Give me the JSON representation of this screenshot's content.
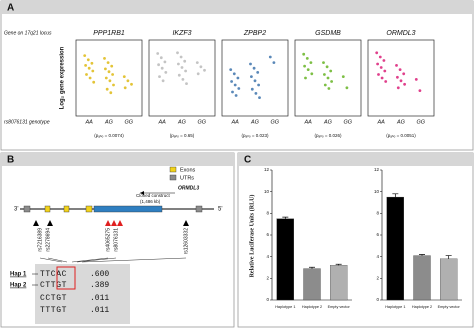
{
  "panel_a": {
    "label": "A",
    "gene_label": "Gene on 17q21 locus",
    "y_label": "Log₂ gene expression",
    "x_label": "rs8076131 genotype"
  },
  "panel_b": {
    "label": "B",
    "legend": [
      "Exons",
      "UTRs"
    ],
    "end_3": "3'",
    "end_5": "5'",
    "gene": "ORMDL3",
    "construct": [
      "Cloned construct",
      "(1,486 kb)"
    ],
    "snps": [
      "rs7216389",
      "rs2278694",
      "rs4065275",
      "rs8076131",
      "rs12603332"
    ],
    "hap_labels": [
      "Hap 1",
      "Hap 2"
    ],
    "haplotypes": [
      {
        "seq": "TTCAC",
        "freq": ".600"
      },
      {
        "seq": "CTTGT",
        "freq": ".389"
      },
      {
        "seq": "CCTGT",
        "freq": ".011"
      },
      {
        "seq": "TTTGT",
        "freq": ".011"
      }
    ]
  },
  "panel_c": {
    "label": "C",
    "y_label": "Relative Luciferase Units (RLU)"
  },
  "chart_data": [
    {
      "type": "strip",
      "title": "PPP1RB1",
      "color": "#e3c437",
      "categories": [
        "AA",
        "AG",
        "GG"
      ],
      "ylim": [
        0,
        10
      ],
      "values": [
        [
          8.2,
          7.6,
          7.1,
          6.8,
          6.4,
          6.0,
          5.5,
          5.0,
          4.4
        ],
        [
          7.8,
          7.2,
          6.7,
          6.3,
          5.9,
          5.5,
          5.0,
          4.6,
          4.0,
          3.4,
          2.9
        ],
        [
          5.2,
          4.6,
          4.1,
          3.6
        ]
      ],
      "p_label": "(pₐₙₒ = 0.0074)"
    },
    {
      "type": "strip",
      "title": "IKZF3",
      "color": "#c4c4c4",
      "categories": [
        "AA",
        "AG",
        "GG"
      ],
      "ylim": [
        0,
        10
      ],
      "values": [
        [
          8.5,
          7.9,
          7.3,
          6.9,
          6.4,
          5.8,
          5.2,
          4.6
        ],
        [
          8.6,
          8.0,
          7.4,
          7.0,
          6.5,
          6.0,
          5.4,
          4.8,
          4.2
        ],
        [
          7.2,
          6.6,
          6.1,
          5.6
        ]
      ],
      "p_label": "(pₐₙₒ = 0.65)"
    },
    {
      "type": "strip",
      "title": "ZPBP2",
      "color": "#5a88b8",
      "categories": [
        "AA",
        "AG",
        "GG"
      ],
      "ylim": [
        0,
        10
      ],
      "values": [
        [
          6.2,
          5.6,
          5.0,
          4.5,
          4.0,
          3.5,
          3.0,
          2.5
        ],
        [
          7.0,
          6.4,
          5.8,
          5.2,
          4.6,
          4.0,
          3.4,
          2.8,
          2.2
        ],
        [
          8.0,
          7.2
        ]
      ],
      "p_label": "(pₐₙₒ = 0.023)"
    },
    {
      "type": "strip",
      "title": "GSDMB",
      "color": "#7dbf45",
      "categories": [
        "AA",
        "AG",
        "GG"
      ],
      "ylim": [
        0,
        10
      ],
      "values": [
        [
          8.4,
          7.8,
          7.2,
          6.7,
          6.2,
          5.6,
          5.0
        ],
        [
          7.2,
          6.6,
          6.0,
          5.5,
          5.0,
          4.5,
          4.0,
          3.5
        ],
        [
          5.2,
          3.6
        ]
      ],
      "p_label": "(pₐₙₒ = 0.026)"
    },
    {
      "type": "strip",
      "title": "ORMDL3",
      "color": "#e0408c",
      "categories": [
        "AA",
        "AG",
        "GG"
      ],
      "ylim": [
        0,
        10
      ],
      "values": [
        [
          8.6,
          8.0,
          7.5,
          7.0,
          6.5,
          6.0,
          5.5,
          5.0,
          4.5
        ],
        [
          6.8,
          6.2,
          5.6,
          5.1,
          4.6,
          4.1,
          3.6
        ],
        [
          4.8,
          3.2
        ]
      ],
      "p_label": "(pₐₙₒ = 0.0051)"
    },
    {
      "type": "bar",
      "categories": [
        "Haplotype 1",
        "Haplotype 2",
        "Empty vector"
      ],
      "values": [
        7.5,
        2.9,
        3.2
      ],
      "errors": [
        0.15,
        0.12,
        0.1
      ],
      "colors": [
        "#000000",
        "#8c8c8c",
        "#b0b0b0"
      ],
      "ylim": [
        0,
        12
      ],
      "yticks": [
        0,
        2,
        4,
        6,
        8,
        10,
        12
      ]
    },
    {
      "type": "bar",
      "categories": [
        "Haplotype 1",
        "Haplotype 2",
        "Empty vector"
      ],
      "values": [
        9.5,
        4.1,
        3.8
      ],
      "errors": [
        0.3,
        0.1,
        0.3
      ],
      "colors": [
        "#000000",
        "#8c8c8c",
        "#b0b0b0"
      ],
      "ylim": [
        0,
        12
      ],
      "yticks": [
        0,
        2,
        4,
        6,
        8,
        10,
        12
      ]
    }
  ]
}
